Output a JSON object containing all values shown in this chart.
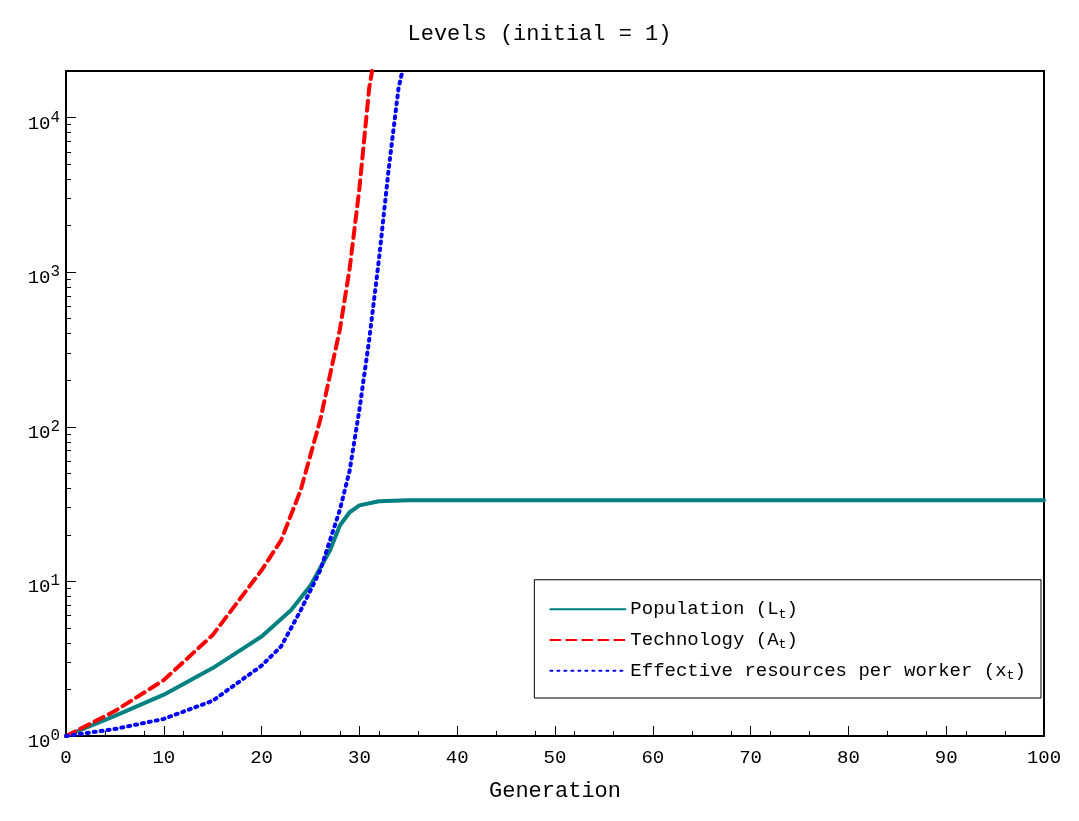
{
  "chart_data": {
    "type": "line",
    "title": "Levels (initial = 1)",
    "xlabel": "Generation",
    "xlim": [
      0,
      100
    ],
    "xticks": [
      0,
      10,
      20,
      30,
      40,
      50,
      60,
      70,
      80,
      90,
      100
    ],
    "ylim": [
      1,
      20000
    ],
    "yticks": [
      {
        "value": 1,
        "label": "10$^{0}$"
      },
      {
        "value": 10,
        "label": "10$^{1}$"
      },
      {
        "value": 100,
        "label": "10$^{2}$"
      },
      {
        "value": 1000,
        "label": "10$^{3}$"
      },
      {
        "value": 10000,
        "label": "10$^{4}$"
      }
    ],
    "log": "y",
    "grid": false,
    "legend": "bottom right",
    "marker": "none",
    "series": [
      {
        "name": "Population (L$_{t}$)",
        "color": "#008080",
        "line_style": "solid",
        "x": [
          0,
          5,
          10,
          15,
          20,
          23,
          25,
          27,
          28,
          29,
          30,
          32,
          35,
          40,
          100
        ],
        "values": [
          1,
          1.35,
          1.85,
          2.75,
          4.4,
          6.5,
          9.4,
          15.9,
          23,
          28,
          31,
          33,
          33.5,
          33.5,
          33.5
        ]
      },
      {
        "name": "Technology (A$_{t}$)",
        "color": "#ff0000",
        "line_style": "dashed",
        "x": [
          0,
          5,
          10,
          15,
          20,
          22,
          24,
          26,
          28,
          29,
          30,
          31,
          31.3
        ],
        "values": [
          1,
          1.45,
          2.3,
          4.5,
          11.8,
          18.5,
          39,
          111,
          425,
          1050,
          3470,
          15500,
          20000
        ]
      },
      {
        "name": "Effective resources per worker (x$_{t}$)",
        "color": "#0000ff",
        "line_style": "dotted",
        "x": [
          0,
          5,
          10,
          15,
          20,
          22,
          24,
          26,
          28,
          29,
          30,
          31,
          32,
          33,
          34,
          34.4
        ],
        "values": [
          1,
          1.11,
          1.29,
          1.69,
          2.85,
          3.8,
          6.5,
          11.8,
          29,
          52,
          129,
          365,
          1210,
          4680,
          15500,
          20000
        ]
      }
    ]
  }
}
